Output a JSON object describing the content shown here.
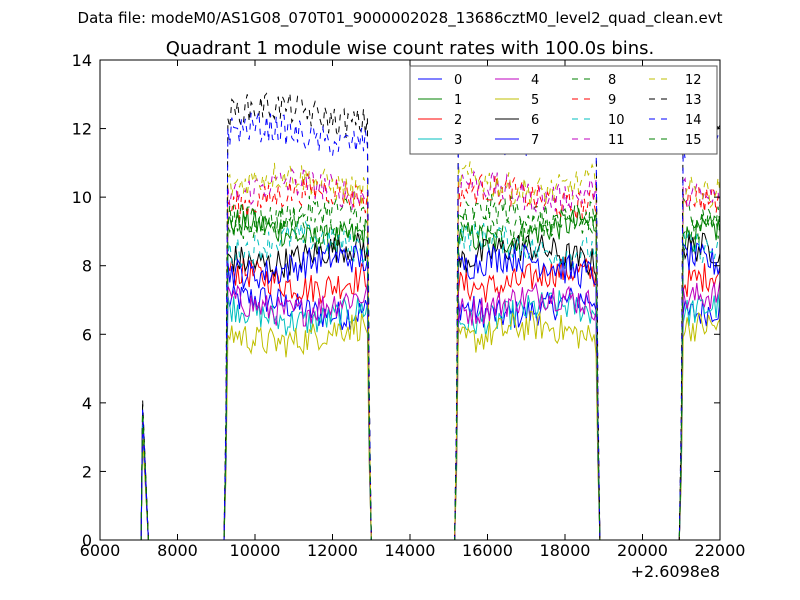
{
  "chart_data": {
    "type": "line",
    "suptitle": "Data file: modeM0/AS1G08_070T01_9000002028_13686cztM0_level2_quad_clean.evt",
    "title": "Quadrant 1 module wise count rates with 100.0s bins.",
    "xlabel": "",
    "ylabel": "",
    "x_offset_label": "+2.6098e8",
    "xlim": [
      6000,
      22000
    ],
    "ylim": [
      0,
      14
    ],
    "x_ticks": [
      6000,
      8000,
      10000,
      12000,
      14000,
      16000,
      18000,
      20000,
      22000
    ],
    "y_ticks": [
      0,
      2,
      4,
      6,
      8,
      10,
      12,
      14
    ],
    "grid": false,
    "legend_position": "top-right",
    "legend_columns": 4,
    "good_time_intervals": [
      [
        9300,
        12900
      ],
      [
        15250,
        18800
      ],
      [
        21050,
        22000
      ]
    ],
    "spike": {
      "x": 7100,
      "rise_x": 7250
    },
    "series": [
      {
        "name": "0",
        "color": "#0000ff",
        "dash": "solid",
        "level": 6.8,
        "spike": 3.8
      },
      {
        "name": "1",
        "color": "#008000",
        "dash": "solid",
        "level": 9.0,
        "spike": 3.6
      },
      {
        "name": "2",
        "color": "#ff0000",
        "dash": "solid",
        "level": 7.6,
        "spike": 3.4
      },
      {
        "name": "3",
        "color": "#00bfbf",
        "dash": "solid",
        "level": 6.6,
        "spike": 3.2
      },
      {
        "name": "4",
        "color": "#bf00bf",
        "dash": "solid",
        "level": 6.9,
        "spike": 3.5
      },
      {
        "name": "5",
        "color": "#bfbf00",
        "dash": "solid",
        "level": 6.0,
        "spike": 3.0
      },
      {
        "name": "6",
        "color": "#000000",
        "dash": "solid",
        "level": 8.3,
        "spike": 3.7
      },
      {
        "name": "7",
        "color": "#0000ff",
        "dash": "solid",
        "level": 8.0,
        "spike": 3.3
      },
      {
        "name": "8",
        "color": "#008000",
        "dash": "dashed",
        "level": 9.4,
        "spike": 3.9
      },
      {
        "name": "9",
        "color": "#ff0000",
        "dash": "dashed",
        "level": 10.0,
        "spike": 3.6
      },
      {
        "name": "10",
        "color": "#00bfbf",
        "dash": "dashed",
        "level": 8.6,
        "spike": 3.4
      },
      {
        "name": "11",
        "color": "#bf00bf",
        "dash": "dashed",
        "level": 10.2,
        "spike": 3.5
      },
      {
        "name": "12",
        "color": "#bfbf00",
        "dash": "dashed",
        "level": 10.4,
        "spike": 3.2
      },
      {
        "name": "13",
        "color": "#000000",
        "dash": "dashed",
        "level": 12.4,
        "spike": 4.1
      },
      {
        "name": "14",
        "color": "#0000ff",
        "dash": "dashed",
        "level": 11.8,
        "spike": 3.8
      },
      {
        "name": "15",
        "color": "#008000",
        "dash": "dashed",
        "level": 9.2,
        "spike": 3.7
      }
    ]
  }
}
